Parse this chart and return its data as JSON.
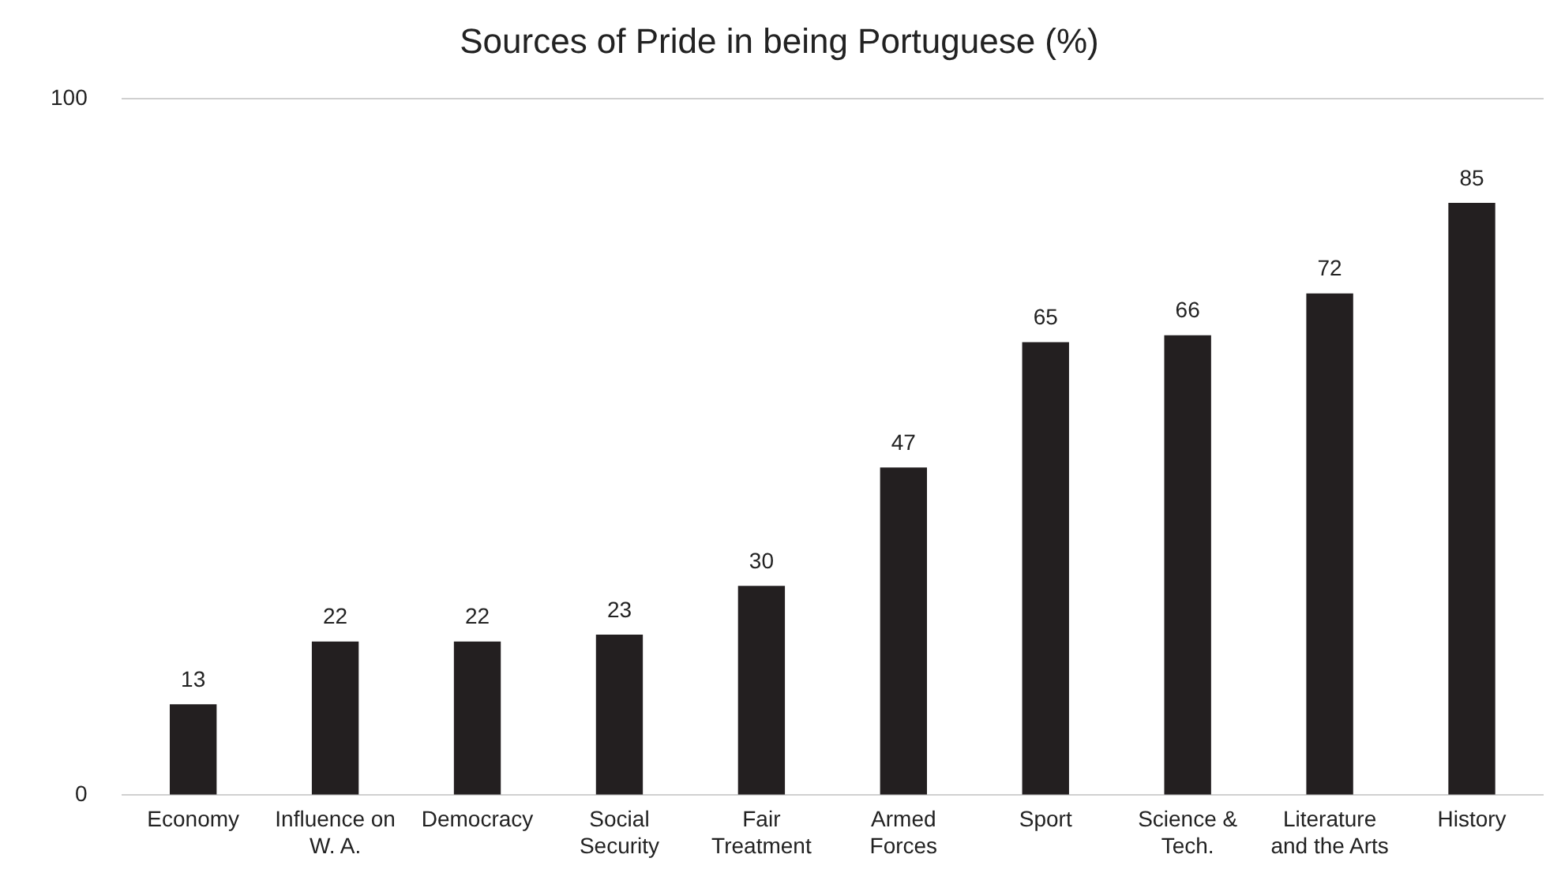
{
  "chart_data": {
    "type": "bar",
    "title": "Sources of Pride in being Portuguese (%)",
    "categories": [
      "Economy",
      "Influence on\nW. A.",
      "Democracy",
      "Social\nSecurity",
      "Fair\nTreatment",
      "Armed\nForces",
      "Sport",
      "Science &\nTech.",
      "Literature\nand the Arts",
      "History"
    ],
    "values": [
      13,
      22,
      22,
      23,
      30,
      47,
      65,
      66,
      72,
      85
    ],
    "color": "#231f20",
    "ylim": [
      0,
      100
    ],
    "yticks": [
      0,
      100
    ],
    "grid": false,
    "data_labels": true,
    "legend": false
  }
}
